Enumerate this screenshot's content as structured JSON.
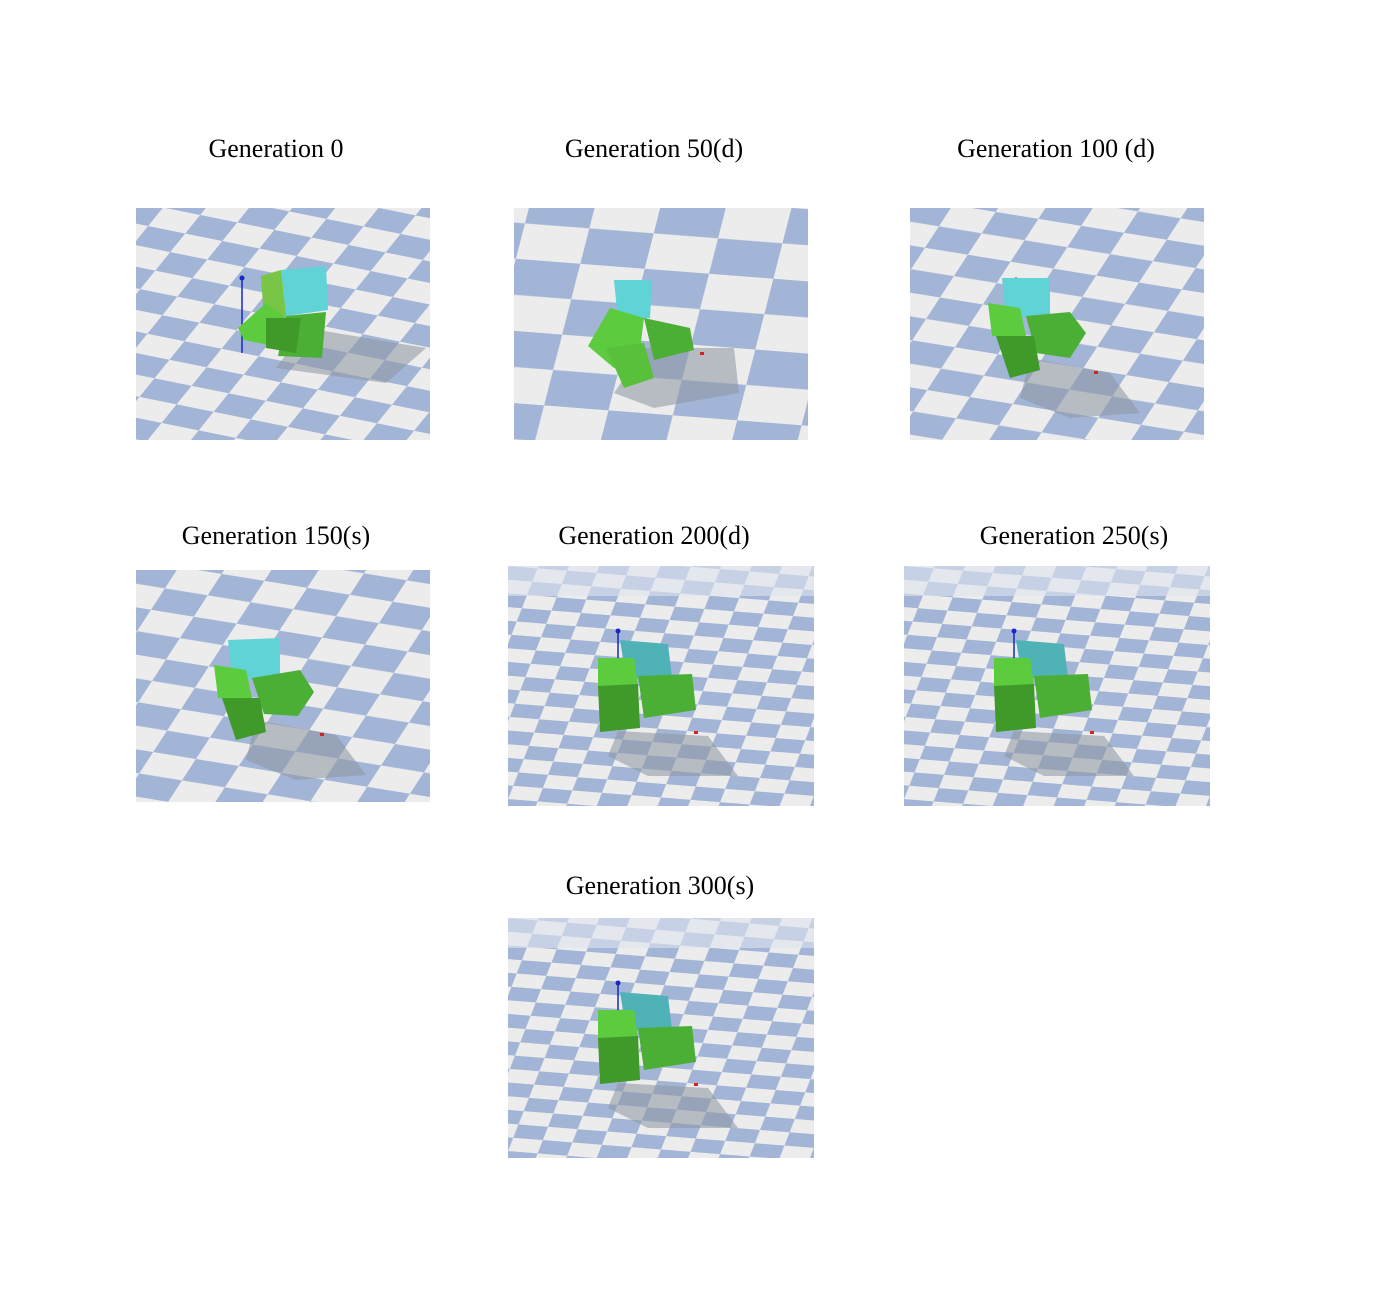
{
  "panels": [
    {
      "title": "Generation 0"
    },
    {
      "title": "Generation 50(d)"
    },
    {
      "title": "Generation 100 (d)"
    },
    {
      "title": "Generation 150(s)"
    },
    {
      "title": "Generation 200(d)"
    },
    {
      "title": "Generation 250(s)"
    },
    {
      "title": "Generation 300(s)"
    }
  ],
  "colors": {
    "floor_blue": "#a3b5d6",
    "floor_white": "#ececec",
    "body_cyan": "#5fd3d6",
    "limb_green": "#5ccb3d",
    "limb_green_dark": "#3f9a2a",
    "shadow": "#8c93a0",
    "axis_blue": "#1626c8",
    "marker_red": "#d42222"
  }
}
